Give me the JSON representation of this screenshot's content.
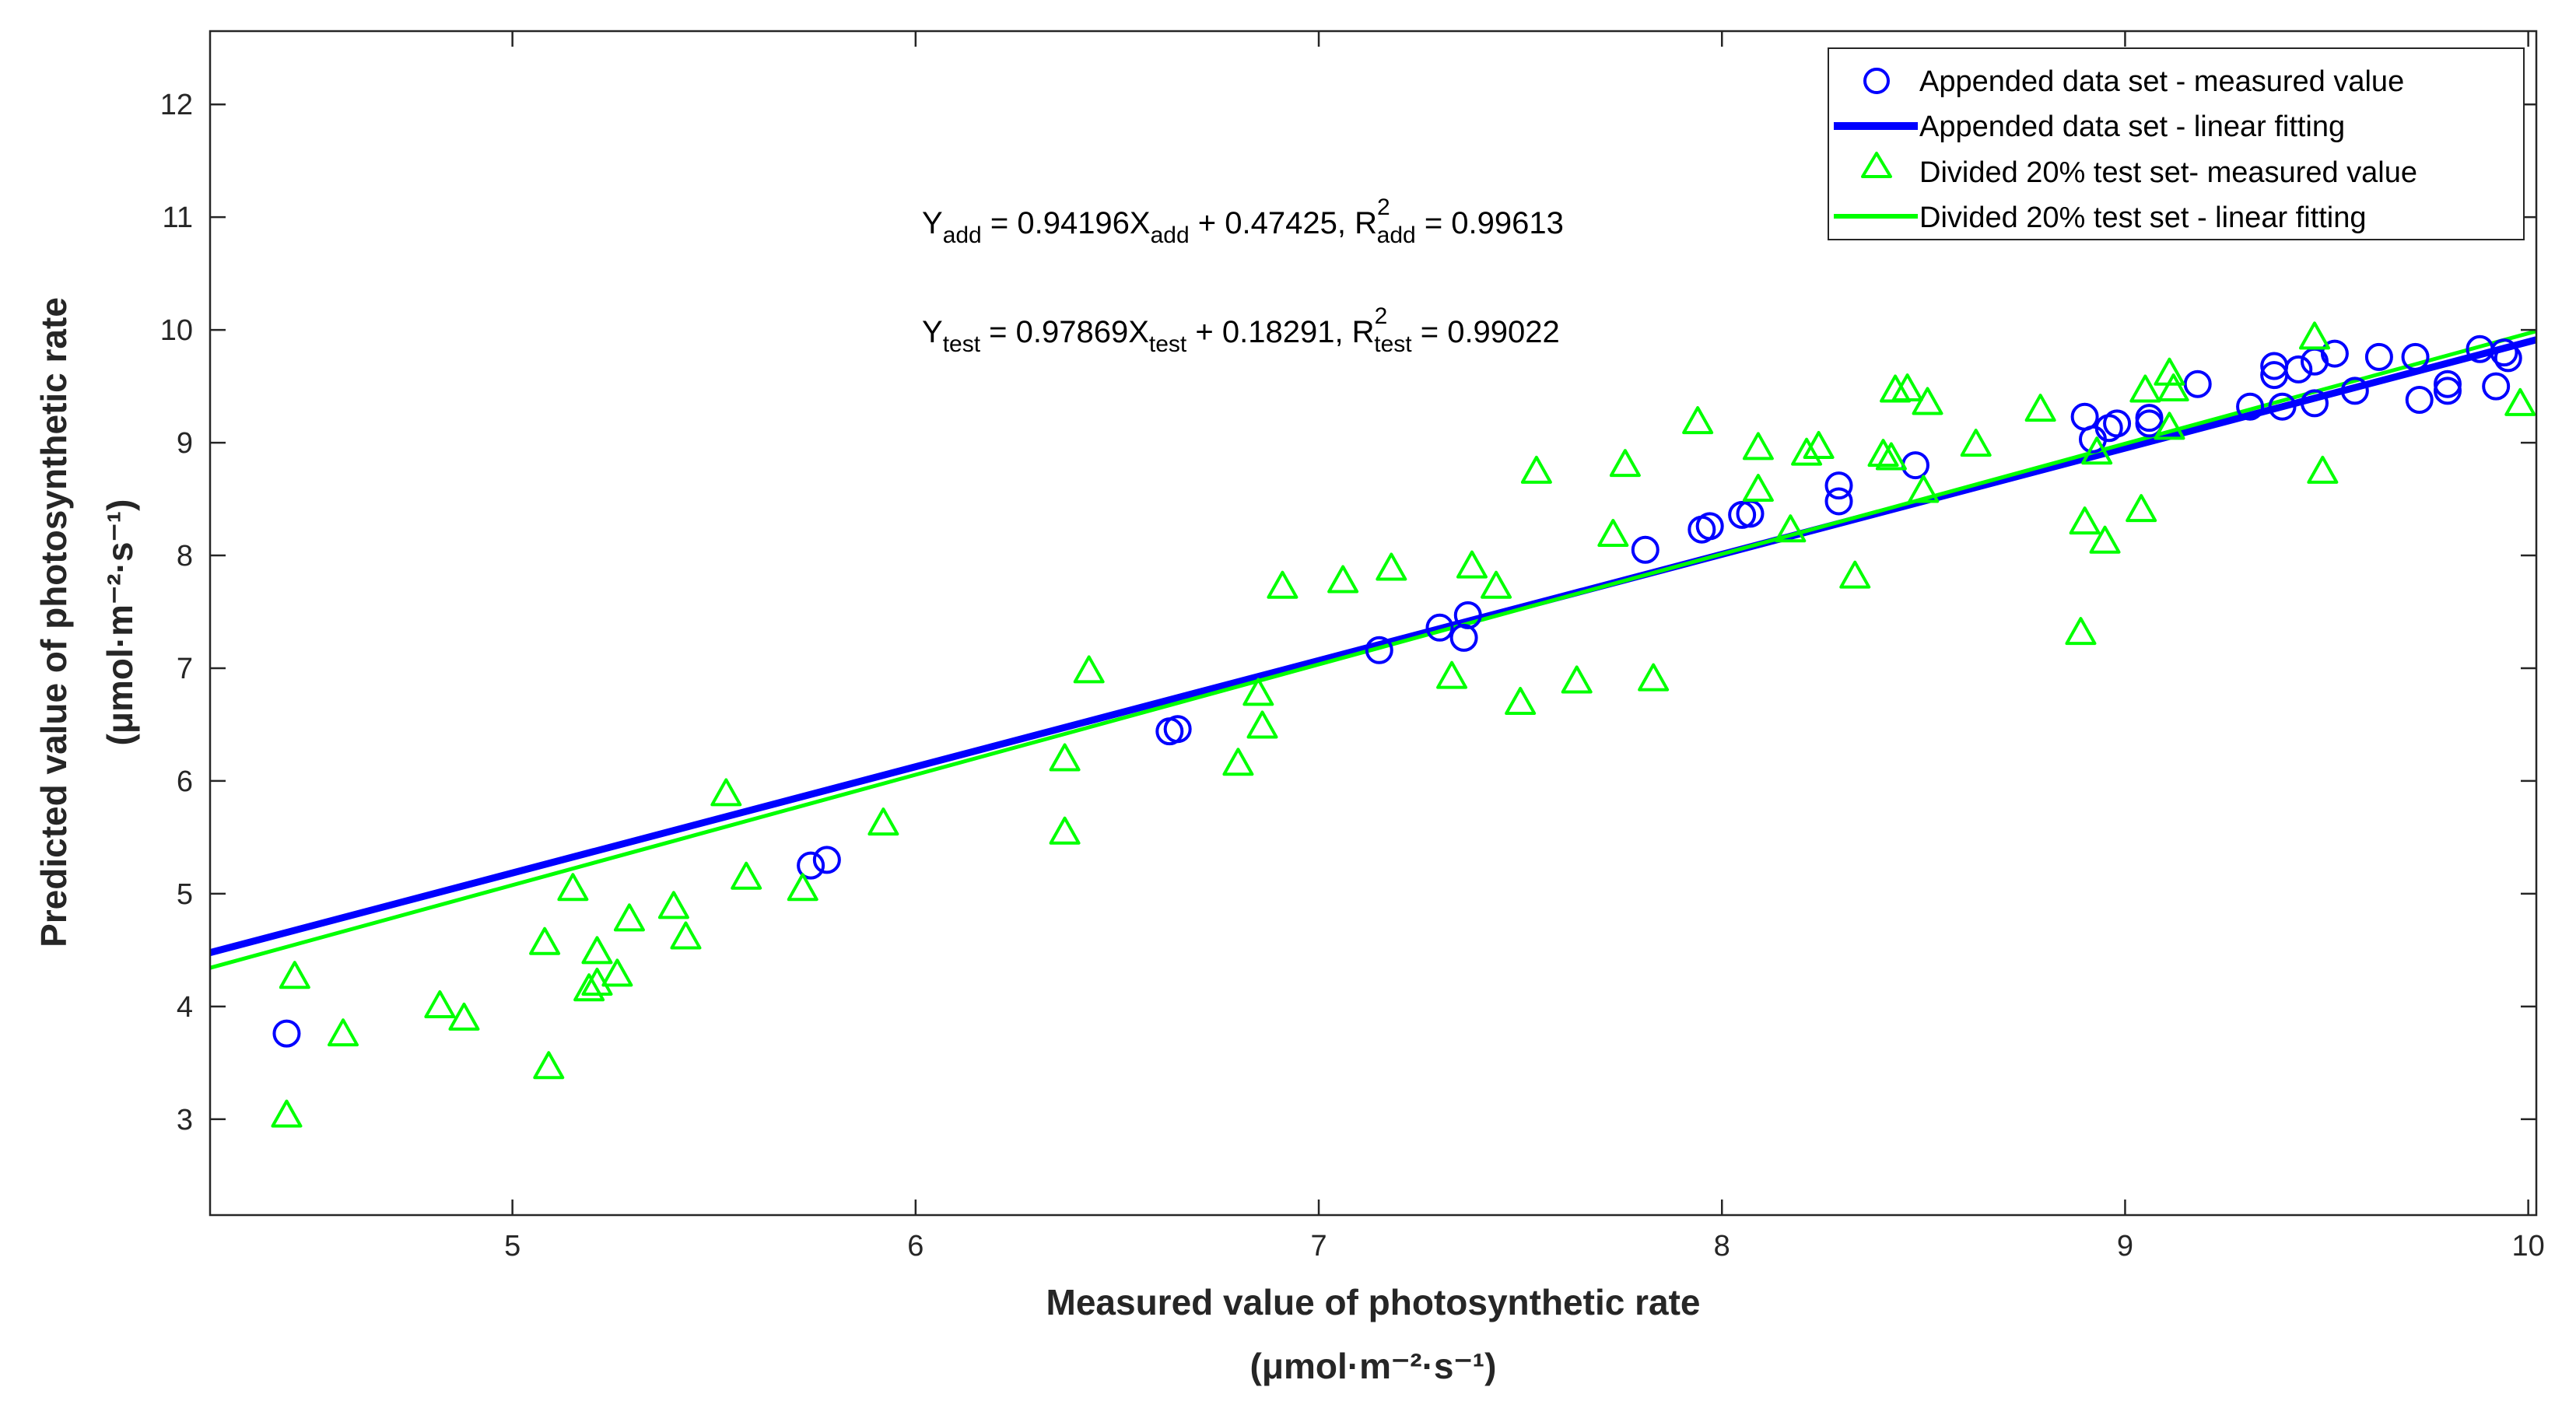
{
  "chart_data": {
    "type": "scatter",
    "xlim": [
      4.25,
      10.02
    ],
    "ylim": [
      2.15,
      12.65
    ],
    "xticks": [
      5,
      6,
      7,
      8,
      9,
      10
    ],
    "yticks": [
      3,
      4,
      5,
      6,
      7,
      8,
      9,
      10,
      11,
      12
    ],
    "xlabel": "Measured value of photosynthetic rate",
    "xlabel_units": "(μmol·m⁻²·s⁻¹)",
    "ylabel": "Predicted value of photosynthetic rate",
    "ylabel_units": "(μmol·m⁻²·s⁻¹)",
    "equations": [
      {
        "y_sub": "add",
        "x_sub": "add",
        "r_sub": "add",
        "lhs": "Y",
        "mid": " = 0.94196X",
        "tail": " + 0.47425,  R",
        "sup": "2",
        "end": " = 0.99613"
      },
      {
        "y_sub": "test",
        "x_sub": "test",
        "r_sub": "test",
        "lhs": "Y",
        "mid": " = 0.97869X",
        "tail": " + 0.18291,  R",
        "sup": "2",
        "end": " = 0.99022"
      }
    ],
    "legend": {
      "placement": "top-right",
      "entries": [
        "Appended data set - measured value",
        "Appended data set - linear fitting",
        "Divided 20% test set- measured value",
        "Divided 20% test set - linear fitting"
      ]
    },
    "series": [
      {
        "name": "Appended data set - measured value",
        "marker": "circle",
        "color": "#0000ff",
        "points": [
          [
            4.44,
            3.76
          ],
          [
            5.74,
            5.25
          ],
          [
            5.78,
            5.3
          ],
          [
            6.63,
            6.44
          ],
          [
            6.65,
            6.46
          ],
          [
            7.15,
            7.16
          ],
          [
            7.3,
            7.36
          ],
          [
            7.36,
            7.27
          ],
          [
            7.37,
            7.47
          ],
          [
            7.81,
            8.05
          ],
          [
            7.95,
            8.23
          ],
          [
            7.97,
            8.26
          ],
          [
            8.05,
            8.36
          ],
          [
            8.07,
            8.37
          ],
          [
            8.29,
            8.48
          ],
          [
            8.29,
            8.62
          ],
          [
            8.48,
            8.8
          ],
          [
            8.9,
            9.23
          ],
          [
            8.92,
            9.03
          ],
          [
            8.96,
            9.13
          ],
          [
            8.98,
            9.17
          ],
          [
            9.06,
            9.22
          ],
          [
            9.06,
            9.17
          ],
          [
            9.18,
            9.52
          ],
          [
            9.31,
            9.32
          ],
          [
            9.37,
            9.68
          ],
          [
            9.37,
            9.6
          ],
          [
            9.39,
            9.32
          ],
          [
            9.43,
            9.65
          ],
          [
            9.47,
            9.72
          ],
          [
            9.47,
            9.35
          ],
          [
            9.52,
            9.79
          ],
          [
            9.57,
            9.46
          ],
          [
            9.63,
            9.76
          ],
          [
            9.72,
            9.76
          ],
          [
            9.73,
            9.38
          ],
          [
            9.8,
            9.52
          ],
          [
            9.8,
            9.46
          ],
          [
            9.88,
            9.83
          ],
          [
            9.92,
            9.5
          ],
          [
            9.94,
            9.8
          ],
          [
            9.95,
            9.75
          ]
        ]
      },
      {
        "name": "Appended data set - linear fitting",
        "type": "line",
        "color": "#0000ff",
        "slope": 0.94196,
        "intercept": 0.47425
      },
      {
        "name": "Divided 20% test set- measured value",
        "marker": "triangle",
        "color": "#00ff00",
        "points": [
          [
            4.44,
            3.05
          ],
          [
            4.46,
            4.28
          ],
          [
            4.58,
            3.77
          ],
          [
            4.82,
            4.02
          ],
          [
            4.88,
            3.91
          ],
          [
            5.08,
            4.58
          ],
          [
            5.09,
            3.48
          ],
          [
            5.15,
            5.06
          ],
          [
            5.19,
            4.17
          ],
          [
            5.21,
            4.5
          ],
          [
            5.21,
            4.22
          ],
          [
            5.26,
            4.3
          ],
          [
            5.29,
            4.79
          ],
          [
            5.4,
            4.9
          ],
          [
            5.43,
            4.63
          ],
          [
            5.53,
            5.9
          ],
          [
            5.58,
            5.16
          ],
          [
            5.72,
            5.06
          ],
          [
            5.92,
            5.64
          ],
          [
            6.37,
            6.21
          ],
          [
            6.37,
            5.56
          ],
          [
            6.43,
            6.99
          ],
          [
            6.8,
            6.17
          ],
          [
            6.85,
            6.79
          ],
          [
            6.86,
            6.5
          ],
          [
            6.91,
            7.74
          ],
          [
            7.06,
            7.79
          ],
          [
            7.18,
            7.9
          ],
          [
            7.33,
            6.94
          ],
          [
            7.38,
            7.92
          ],
          [
            7.44,
            7.74
          ],
          [
            7.5,
            6.71
          ],
          [
            7.54,
            8.76
          ],
          [
            7.64,
            6.9
          ],
          [
            7.73,
            8.2
          ],
          [
            7.76,
            8.82
          ],
          [
            7.83,
            6.92
          ],
          [
            7.94,
            9.2
          ],
          [
            8.09,
            8.97
          ],
          [
            8.09,
            8.6
          ],
          [
            8.17,
            8.24
          ],
          [
            8.21,
            8.92
          ],
          [
            8.24,
            8.98
          ],
          [
            8.33,
            7.83
          ],
          [
            8.4,
            8.91
          ],
          [
            8.42,
            8.88
          ],
          [
            8.43,
            9.48
          ],
          [
            8.46,
            9.49
          ],
          [
            8.51,
            9.37
          ],
          [
            8.5,
            8.59
          ],
          [
            8.63,
            9.0
          ],
          [
            8.79,
            9.31
          ],
          [
            8.89,
            7.33
          ],
          [
            8.9,
            8.31
          ],
          [
            8.93,
            8.93
          ],
          [
            8.95,
            8.14
          ],
          [
            9.04,
            8.42
          ],
          [
            9.05,
            9.48
          ],
          [
            9.11,
            9.63
          ],
          [
            9.11,
            9.15
          ],
          [
            9.12,
            9.49
          ],
          [
            9.47,
            9.95
          ],
          [
            9.49,
            8.76
          ],
          [
            9.98,
            9.36
          ]
        ]
      },
      {
        "name": "Divided 20% test set - linear fitting",
        "type": "line",
        "color": "#00ff00",
        "slope": 0.97869,
        "intercept": 0.18291
      }
    ]
  }
}
